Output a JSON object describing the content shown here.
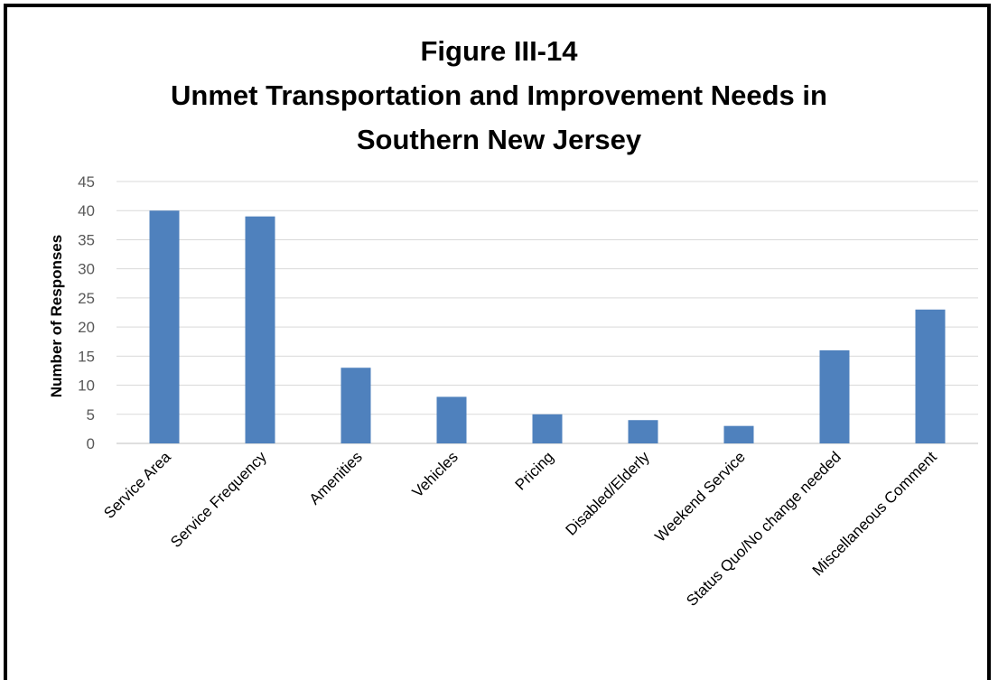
{
  "chart_data": {
    "type": "bar",
    "title_lines": [
      "Figure III-14",
      "Unmet Transportation and Improvement Needs in",
      "Southern New Jersey"
    ],
    "xlabel": "",
    "ylabel": "Number of Responses",
    "categories": [
      "Service Area",
      "Service Frequency",
      "Amenities",
      "Vehicles",
      "Pricing",
      "Disabled/Elderly",
      "Weekend Service",
      "Status Quo/No change needed",
      "Miscellaneous Comment"
    ],
    "values": [
      40,
      39,
      13,
      8,
      5,
      4,
      3,
      16,
      23
    ],
    "ylim": [
      0,
      45
    ],
    "yticks": [
      "0",
      "5",
      "10",
      "15",
      "20",
      "25",
      "30",
      "35",
      "40",
      "45"
    ],
    "grid": true,
    "legend": "none",
    "bar_color": "#4F81BD"
  }
}
